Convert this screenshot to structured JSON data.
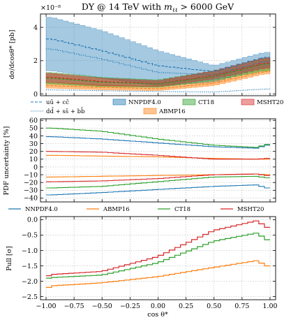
{
  "title": "DY @ 14 TeV with m_ℓℓ > 6000 GeV",
  "title_parts": {
    "pre": "DY @ 14 TeV with ",
    "mvar": "m",
    "msub": "ℓℓ",
    "post": " > 6000 GeV"
  },
  "colors": {
    "nnpdf": "#1f77b4",
    "abmp": "#ff7f0e",
    "ct18": "#2ca02c",
    "msht": "#d62728",
    "grid": "#bbbbbb",
    "axis": "#000000"
  },
  "chart_data": [
    {
      "type": "area",
      "id": "xsec",
      "scale_label": "×10⁻⁸",
      "ylabel": "dσ/dcosθ* [pb]",
      "ylim": [
        -0.1,
        4.8
      ],
      "yticks": [
        0,
        2,
        4
      ],
      "xlim": [
        -1.05,
        1.05
      ],
      "xticks": [
        -1.0,
        -0.75,
        -0.5,
        -0.25,
        0.0,
        0.25,
        0.5,
        0.75,
        1.0
      ],
      "legend": [
        {
          "key": "uu",
          "label": "uū + cc̄",
          "style": "dashed"
        },
        {
          "key": "dd",
          "label": "dd̄ + ss̄ + bb̄",
          "style": "dotted"
        },
        {
          "key": "nnpdf",
          "label": "NNPDF4.0",
          "style": "band"
        },
        {
          "key": "abmp",
          "label": "ABMP16",
          "style": "band"
        },
        {
          "key": "ct18",
          "label": "CT18",
          "style": "band"
        },
        {
          "key": "msht",
          "label": "MSHT20",
          "style": "band"
        }
      ],
      "bands": [
        {
          "name": "NNPDF4.0",
          "x": [
            -0.95,
            -0.5,
            0.0,
            0.5,
            0.95
          ],
          "lo": [
            1.4,
            0.95,
            0.5,
            0.7,
            1.6
          ],
          "hi": [
            4.6,
            3.8,
            2.6,
            1.7,
            2.5
          ]
        },
        {
          "name": "ABMP16",
          "x": [
            -0.95,
            -0.5,
            0.0,
            0.5,
            0.95
          ],
          "lo": [
            0.35,
            0.25,
            0.2,
            0.5,
            1.2
          ],
          "hi": [
            0.7,
            0.55,
            0.45,
            0.8,
            1.55
          ]
        },
        {
          "name": "CT18",
          "x": [
            -0.95,
            -0.5,
            0.0,
            0.5,
            0.95
          ],
          "lo": [
            0.6,
            0.45,
            0.4,
            0.8,
            1.4
          ],
          "hi": [
            1.3,
            1.0,
            0.85,
            1.4,
            2.15
          ]
        },
        {
          "name": "MSHT20",
          "x": [
            -0.95,
            -0.5,
            0.0,
            0.5,
            0.95
          ],
          "lo": [
            0.7,
            0.5,
            0.45,
            0.9,
            1.55
          ],
          "hi": [
            1.25,
            0.95,
            0.8,
            1.4,
            2.2
          ]
        }
      ],
      "lines": [
        {
          "key": "nnpdf_total",
          "x": [
            -0.95,
            -0.5,
            0.0,
            0.5,
            0.95
          ],
          "y": [
            3.3,
            2.6,
            1.7,
            1.35,
            2.2
          ],
          "style": "dashed",
          "color": "nnpdf"
        },
        {
          "key": "nnpdf_dd",
          "x": [
            -0.95,
            -0.5,
            0.0,
            0.5,
            0.95
          ],
          "y": [
            2.7,
            2.1,
            1.3,
            1.15,
            1.95
          ],
          "style": "dotted",
          "color": "nnpdf"
        },
        {
          "key": "nnpdf_low",
          "x": [
            -0.95,
            -0.5,
            0.0,
            0.5,
            0.95
          ],
          "y": [
            0.25,
            0.2,
            0.15,
            0.12,
            0.3
          ],
          "style": "dotted",
          "color": "nnpdf"
        },
        {
          "key": "msht_c",
          "x": [
            -0.95,
            -0.5,
            0.0,
            0.5,
            0.95
          ],
          "y": [
            1.0,
            0.75,
            0.62,
            1.1,
            1.85
          ],
          "style": "dashed",
          "color": "msht"
        },
        {
          "key": "ct18_c",
          "x": [
            -0.95,
            -0.5,
            0.0,
            0.5,
            0.95
          ],
          "y": [
            0.95,
            0.7,
            0.6,
            1.05,
            1.8
          ],
          "style": "dashed",
          "color": "ct18"
        },
        {
          "key": "abmp_c",
          "x": [
            -0.95,
            -0.5,
            0.0,
            0.5,
            0.95
          ],
          "y": [
            0.5,
            0.4,
            0.32,
            0.65,
            1.35
          ],
          "style": "dashed",
          "color": "abmp"
        }
      ]
    },
    {
      "type": "line",
      "id": "unc",
      "ylabel": "PDF uncertainty [%]",
      "ylim": [
        -45,
        62
      ],
      "yticks": [
        -40,
        -30,
        -20,
        -10,
        0,
        10,
        20,
        30,
        40,
        50,
        60
      ],
      "xlim": [
        -1.05,
        1.05
      ],
      "xticks": [
        -1.0,
        -0.75,
        -0.5,
        -0.25,
        0.0,
        0.25,
        0.5,
        0.75,
        1.0
      ],
      "legend": [
        "NNPDF4.0",
        "ABMP16",
        "CT18",
        "MSHT20"
      ],
      "series": [
        {
          "name": "NNPDF4.0",
          "color": "nnpdf",
          "x": [
            -0.95,
            -0.5,
            0.0,
            0.5,
            0.9,
            0.95
          ],
          "upper": [
            39,
            36,
            31,
            26,
            24,
            28
          ],
          "lower": [
            -36,
            -33,
            -29,
            -25,
            -23,
            -27
          ]
        },
        {
          "name": "ABMP16",
          "color": "abmp",
          "x": [
            -0.95,
            -0.5,
            0.0,
            0.5,
            0.9,
            0.95
          ],
          "upper": [
            15,
            14,
            13,
            11,
            10,
            10
          ],
          "lower": [
            -13,
            -12,
            -11,
            -10,
            -9,
            -10
          ]
        },
        {
          "name": "CT18",
          "color": "ct18",
          "x": [
            -0.95,
            -0.5,
            0.0,
            0.5,
            0.9,
            0.95
          ],
          "upper": [
            50,
            46,
            36,
            28,
            25,
            29
          ],
          "lower": [
            -27,
            -25,
            -19,
            -13,
            -12,
            -14
          ]
        },
        {
          "name": "MSHT20",
          "color": "msht",
          "x": [
            -0.95,
            -0.5,
            0.0,
            0.5,
            0.9,
            0.95
          ],
          "upper": [
            20,
            19,
            15,
            10,
            10,
            11
          ],
          "lower": [
            -19,
            -18,
            -15,
            -10,
            -9,
            -11
          ]
        }
      ]
    },
    {
      "type": "line",
      "id": "pull",
      "ylabel": "Pull [σ]",
      "xlabel": "cos θ*",
      "ylim": [
        -2.6,
        0.1
      ],
      "yticks": [
        -2.5,
        -2.0,
        -1.5,
        -1.0,
        -0.5,
        0.0
      ],
      "xlim": [
        -1.05,
        1.05
      ],
      "xticks": [
        -1.0,
        -0.75,
        -0.5,
        -0.25,
        0.0,
        0.25,
        0.5,
        0.75,
        1.0
      ],
      "series": [
        {
          "name": "ABMP16",
          "color": "abmp",
          "x": [
            -0.975,
            -0.95,
            -0.5,
            0.0,
            0.5,
            0.9,
            0.95
          ],
          "y": [
            -2.2,
            -2.15,
            -2.05,
            -1.85,
            -1.55,
            -1.32,
            -1.5
          ]
        },
        {
          "name": "CT18",
          "color": "ct18",
          "x": [
            -0.975,
            -0.95,
            -0.5,
            0.0,
            0.5,
            0.9,
            0.95
          ],
          "y": [
            -1.9,
            -1.88,
            -1.8,
            -1.4,
            -0.7,
            -0.42,
            -0.65
          ]
        },
        {
          "name": "MSHT20",
          "color": "msht",
          "x": [
            -0.975,
            -0.95,
            -0.5,
            0.0,
            0.5,
            0.9,
            0.95
          ],
          "y": [
            -1.82,
            -1.78,
            -1.68,
            -1.2,
            -0.35,
            -0.02,
            -0.25
          ]
        }
      ]
    }
  ]
}
